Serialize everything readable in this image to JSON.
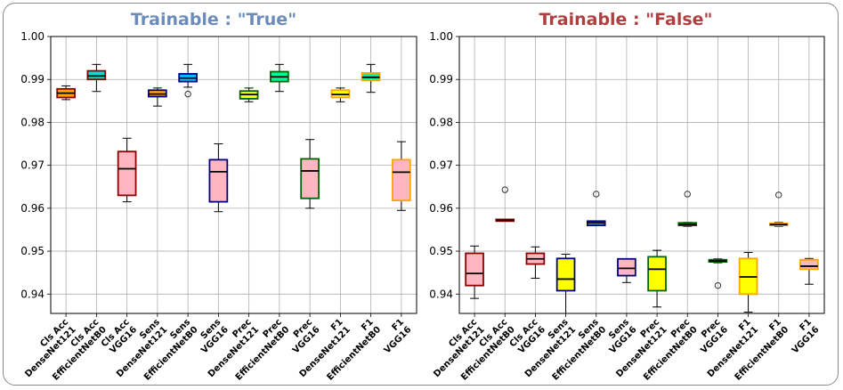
{
  "chart_data": [
    {
      "type": "boxplot",
      "title": "Trainable : \"True\"",
      "title_color": "#6b8cba",
      "ylim": [
        0.9355,
        1.0
      ],
      "yticks": [
        "1.00",
        "0.99",
        "0.98",
        "0.97",
        "0.96",
        "0.95",
        "0.94"
      ],
      "grid": true,
      "boxes": [
        {
          "label_top": "Cls Acc",
          "label_bottom": "DenseNet121",
          "fill": "#ffa500",
          "edge": "#8b0000",
          "whislo": 0.9853,
          "q1": 0.9858,
          "med": 0.9868,
          "q3": 0.9878,
          "whishi": 0.9885,
          "fliers": []
        },
        {
          "label_top": "Cls Acc",
          "label_bottom": "EfficientNetB0",
          "fill": "#00e0d0",
          "edge": "#8b0000",
          "whislo": 0.9872,
          "q1": 0.99,
          "med": 0.9908,
          "q3": 0.992,
          "whishi": 0.9935,
          "fliers": []
        },
        {
          "label_top": "Cls Acc",
          "label_bottom": "VGG16",
          "fill": "#ffb6c1",
          "edge": "#8b0000",
          "whislo": 0.9615,
          "q1": 0.963,
          "med": 0.9692,
          "q3": 0.9732,
          "whishi": 0.9763,
          "fliers": []
        },
        {
          "label_top": "Sens",
          "label_bottom": "DenseNet121",
          "fill": "#ffa500",
          "edge": "#000080",
          "whislo": 0.9838,
          "q1": 0.986,
          "med": 0.9866,
          "q3": 0.9875,
          "whishi": 0.988,
          "fliers": []
        },
        {
          "label_top": "Sens",
          "label_bottom": "EfficientNetB0",
          "fill": "#00bfff",
          "edge": "#000080",
          "whislo": 0.9882,
          "q1": 0.9895,
          "med": 0.9903,
          "q3": 0.9913,
          "whishi": 0.9935,
          "fliers": [
            0.9866
          ]
        },
        {
          "label_top": "Sens",
          "label_bottom": "VGG16",
          "fill": "#ffb6c1",
          "edge": "#000080",
          "whislo": 0.9592,
          "q1": 0.9615,
          "med": 0.9685,
          "q3": 0.9713,
          "whishi": 0.975,
          "fliers": []
        },
        {
          "label_top": "Prec",
          "label_bottom": "DenseNet121",
          "fill": "#ffff00",
          "edge": "#006400",
          "whislo": 0.9848,
          "q1": 0.9855,
          "med": 0.9865,
          "q3": 0.9873,
          "whishi": 0.988,
          "fliers": []
        },
        {
          "label_top": "Prec",
          "label_bottom": "EfficientNetB0",
          "fill": "#00fa9a",
          "edge": "#006400",
          "whislo": 0.9872,
          "q1": 0.9895,
          "med": 0.9906,
          "q3": 0.9918,
          "whishi": 0.9935,
          "fliers": []
        },
        {
          "label_top": "Prec",
          "label_bottom": "VGG16",
          "fill": "#ffb6c1",
          "edge": "#006400",
          "whislo": 0.96,
          "q1": 0.9623,
          "med": 0.9687,
          "q3": 0.9715,
          "whishi": 0.976,
          "fliers": []
        },
        {
          "label_top": "F1",
          "label_bottom": "DenseNet121",
          "fill": "#ffff00",
          "edge": "#ffa500",
          "whislo": 0.9848,
          "q1": 0.9858,
          "med": 0.9865,
          "q3": 0.9875,
          "whishi": 0.988,
          "fliers": []
        },
        {
          "label_top": "F1",
          "label_bottom": "EfficientNetB0",
          "fill": "#00fa9a",
          "edge": "#ffa500",
          "whislo": 0.987,
          "q1": 0.9898,
          "med": 0.9905,
          "q3": 0.9915,
          "whishi": 0.9935,
          "fliers": []
        },
        {
          "label_top": "F1",
          "label_bottom": "VGG16",
          "fill": "#ffb6c1",
          "edge": "#ffa500",
          "whislo": 0.9595,
          "q1": 0.9618,
          "med": 0.9684,
          "q3": 0.9713,
          "whishi": 0.9755,
          "fliers": []
        }
      ]
    },
    {
      "type": "boxplot",
      "title": "Trainable : \"False\"",
      "title_color": "#b04040",
      "ylim": [
        0.9355,
        1.0
      ],
      "yticks": [
        "1.00",
        "0.99",
        "0.98",
        "0.97",
        "0.96",
        "0.95",
        "0.94"
      ],
      "grid": true,
      "boxes": [
        {
          "label_top": "Cls Acc",
          "label_bottom": "DenseNet121",
          "fill": "#ffb6c1",
          "edge": "#8b0000",
          "whislo": 0.939,
          "q1": 0.942,
          "med": 0.9448,
          "q3": 0.9495,
          "whishi": 0.9512,
          "fliers": []
        },
        {
          "label_top": "Cls Acc",
          "label_bottom": "EfficientNetB0",
          "fill": "#ffa500",
          "edge": "#8b0000",
          "whislo": 0.957,
          "q1": 0.957,
          "med": 0.9572,
          "q3": 0.9574,
          "whishi": 0.9574,
          "fliers": [
            0.9643
          ]
        },
        {
          "label_top": "Cls Acc",
          "label_bottom": "VGG16",
          "fill": "#ffb6c1",
          "edge": "#8b0000",
          "whislo": 0.9437,
          "q1": 0.947,
          "med": 0.9482,
          "q3": 0.9495,
          "whishi": 0.951,
          "fliers": []
        },
        {
          "label_top": "Sens",
          "label_bottom": "DenseNet121",
          "fill": "#ffff00",
          "edge": "#000080",
          "whislo": 0.9355,
          "q1": 0.9408,
          "med": 0.9435,
          "q3": 0.9483,
          "whishi": 0.9493,
          "fliers": []
        },
        {
          "label_top": "Sens",
          "label_bottom": "EfficientNetB0",
          "fill": "#00bfff",
          "edge": "#000080",
          "whislo": 0.956,
          "q1": 0.956,
          "med": 0.9566,
          "q3": 0.957,
          "whishi": 0.957,
          "fliers": [
            0.9633
          ]
        },
        {
          "label_top": "Sens",
          "label_bottom": "VGG16",
          "fill": "#ffb6c1",
          "edge": "#000080",
          "whislo": 0.9427,
          "q1": 0.9443,
          "med": 0.946,
          "q3": 0.9482,
          "whishi": 0.9482,
          "fliers": []
        },
        {
          "label_top": "Prec",
          "label_bottom": "DenseNet121",
          "fill": "#ffff00",
          "edge": "#006400",
          "whislo": 0.937,
          "q1": 0.9408,
          "med": 0.9458,
          "q3": 0.9487,
          "whishi": 0.9502,
          "fliers": []
        },
        {
          "label_top": "Prec",
          "label_bottom": "EfficientNetB0",
          "fill": "#00fa9a",
          "edge": "#006400",
          "whislo": 0.9558,
          "q1": 0.956,
          "med": 0.9562,
          "q3": 0.9566,
          "whishi": 0.9567,
          "fliers": [
            0.9633
          ]
        },
        {
          "label_top": "Prec",
          "label_bottom": "VGG16",
          "fill": "#ffb6c1",
          "edge": "#006400",
          "whislo": 0.9473,
          "q1": 0.9475,
          "med": 0.9477,
          "q3": 0.948,
          "whishi": 0.9482,
          "fliers": [
            0.942
          ]
        },
        {
          "label_top": "F1",
          "label_bottom": "DenseNet121",
          "fill": "#ffff00",
          "edge": "#ffa500",
          "whislo": 0.9358,
          "q1": 0.94,
          "med": 0.944,
          "q3": 0.9483,
          "whishi": 0.9497,
          "fliers": []
        },
        {
          "label_top": "F1",
          "label_bottom": "EfficientNetB0",
          "fill": "#00fa9a",
          "edge": "#ffa500",
          "whislo": 0.9558,
          "q1": 0.956,
          "med": 0.9562,
          "q3": 0.9565,
          "whishi": 0.9567,
          "fliers": [
            0.9631
          ]
        },
        {
          "label_top": "F1",
          "label_bottom": "VGG16",
          "fill": "#ffb6c1",
          "edge": "#ffa500",
          "whislo": 0.9423,
          "q1": 0.9458,
          "med": 0.9465,
          "q3": 0.948,
          "whishi": 0.9483,
          "fliers": []
        }
      ]
    }
  ]
}
